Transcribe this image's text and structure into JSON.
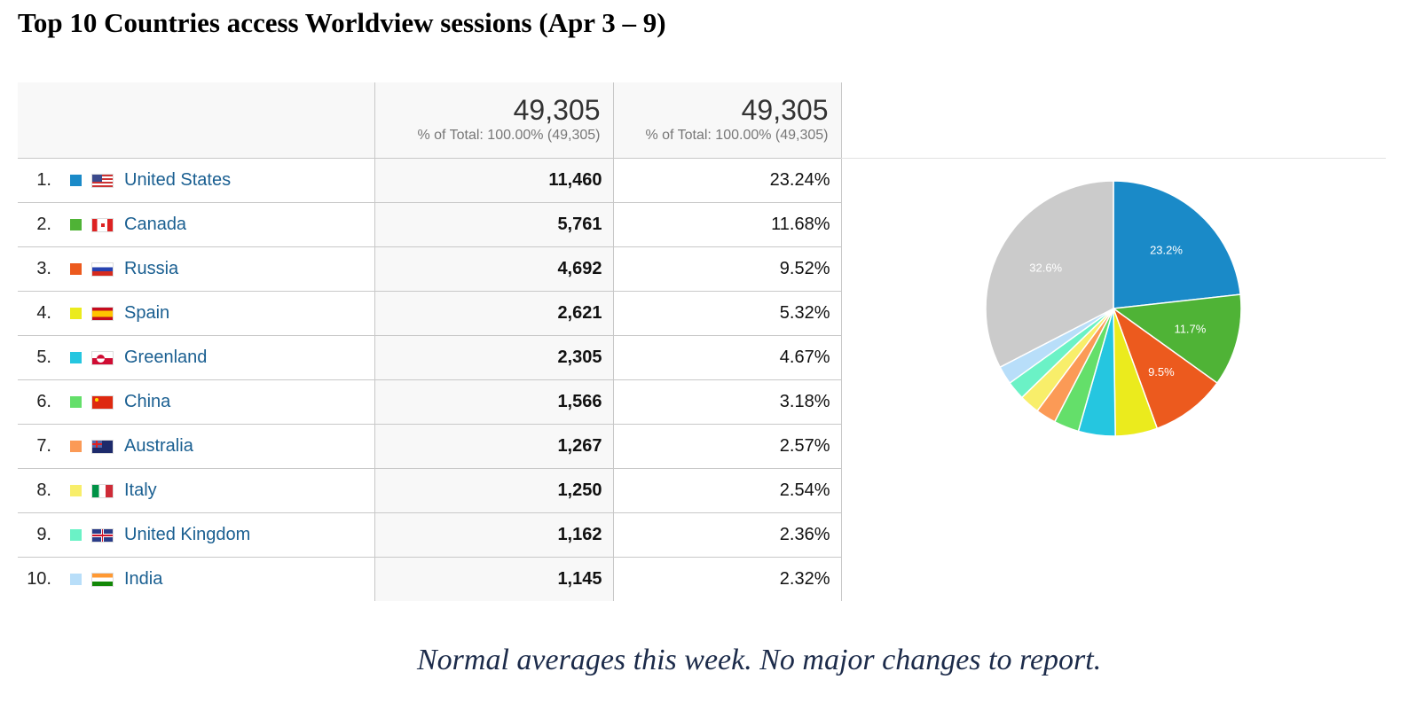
{
  "title": "Top 10 Countries access Worldview sessions (Apr 3 – 9)",
  "note": "Normal averages this week.  No major changes to report.",
  "table": {
    "sessions_header": {
      "total": "49,305",
      "sub": "% of Total: 100.00% (49,305)"
    },
    "percent_header": {
      "total": "49,305",
      "sub": "% of Total: 100.00% (49,305)"
    },
    "rows": [
      {
        "rank": "1.",
        "country": "United States",
        "flag": "us-flag-icon",
        "color": "#1a8ac8",
        "sessions": "11,460",
        "percent": "23.24%"
      },
      {
        "rank": "2.",
        "country": "Canada",
        "flag": "canada-flag-icon",
        "color": "#4fb336",
        "sessions": "5,761",
        "percent": "11.68%"
      },
      {
        "rank": "3.",
        "country": "Russia",
        "flag": "russia-flag-icon",
        "color": "#ec5a1e",
        "sessions": "4,692",
        "percent": "9.52%"
      },
      {
        "rank": "4.",
        "country": "Spain",
        "flag": "spain-flag-icon",
        "color": "#ebeb1d",
        "sessions": "2,621",
        "percent": "5.32%"
      },
      {
        "rank": "5.",
        "country": "Greenland",
        "flag": "greenland-flag-icon",
        "color": "#25c6e0",
        "sessions": "2,305",
        "percent": "4.67%"
      },
      {
        "rank": "6.",
        "country": "China",
        "flag": "china-flag-icon",
        "color": "#64df6a",
        "sessions": "1,566",
        "percent": "3.18%"
      },
      {
        "rank": "7.",
        "country": "Australia",
        "flag": "australia-flag-icon",
        "color": "#fb9a56",
        "sessions": "1,267",
        "percent": "2.57%"
      },
      {
        "rank": "8.",
        "country": "Italy",
        "flag": "italy-flag-icon",
        "color": "#f8ee6a",
        "sessions": "1,250",
        "percent": "2.54%"
      },
      {
        "rank": "9.",
        "country": "United Kingdom",
        "flag": "uk-flag-icon",
        "color": "#6bf2c6",
        "sessions": "1,162",
        "percent": "2.36%"
      },
      {
        "rank": "10.",
        "country": "India",
        "flag": "india-flag-icon",
        "color": "#b8def9",
        "sessions": "1,145",
        "percent": "2.32%"
      }
    ]
  },
  "chart_data": {
    "type": "pie",
    "categories": [
      "United States",
      "Canada",
      "Russia",
      "Spain",
      "Greenland",
      "China",
      "Australia",
      "Italy",
      "United Kingdom",
      "India",
      "Other"
    ],
    "values": [
      23.24,
      11.68,
      9.52,
      5.32,
      4.67,
      3.18,
      2.57,
      2.54,
      2.36,
      2.32,
      32.6
    ],
    "colors": [
      "#1a8ac8",
      "#4fb336",
      "#ec5a1e",
      "#ebeb1d",
      "#25c6e0",
      "#64df6a",
      "#fb9a56",
      "#f8ee6a",
      "#6bf2c6",
      "#b8def9",
      "#cbcbcb"
    ],
    "slice_labels": [
      "23.2%",
      "11.7%",
      "9.5%",
      "",
      "",
      "",
      "",
      "",
      "",
      "",
      "32.6%"
    ],
    "start": "12 o'clock",
    "direction": "clockwise"
  }
}
